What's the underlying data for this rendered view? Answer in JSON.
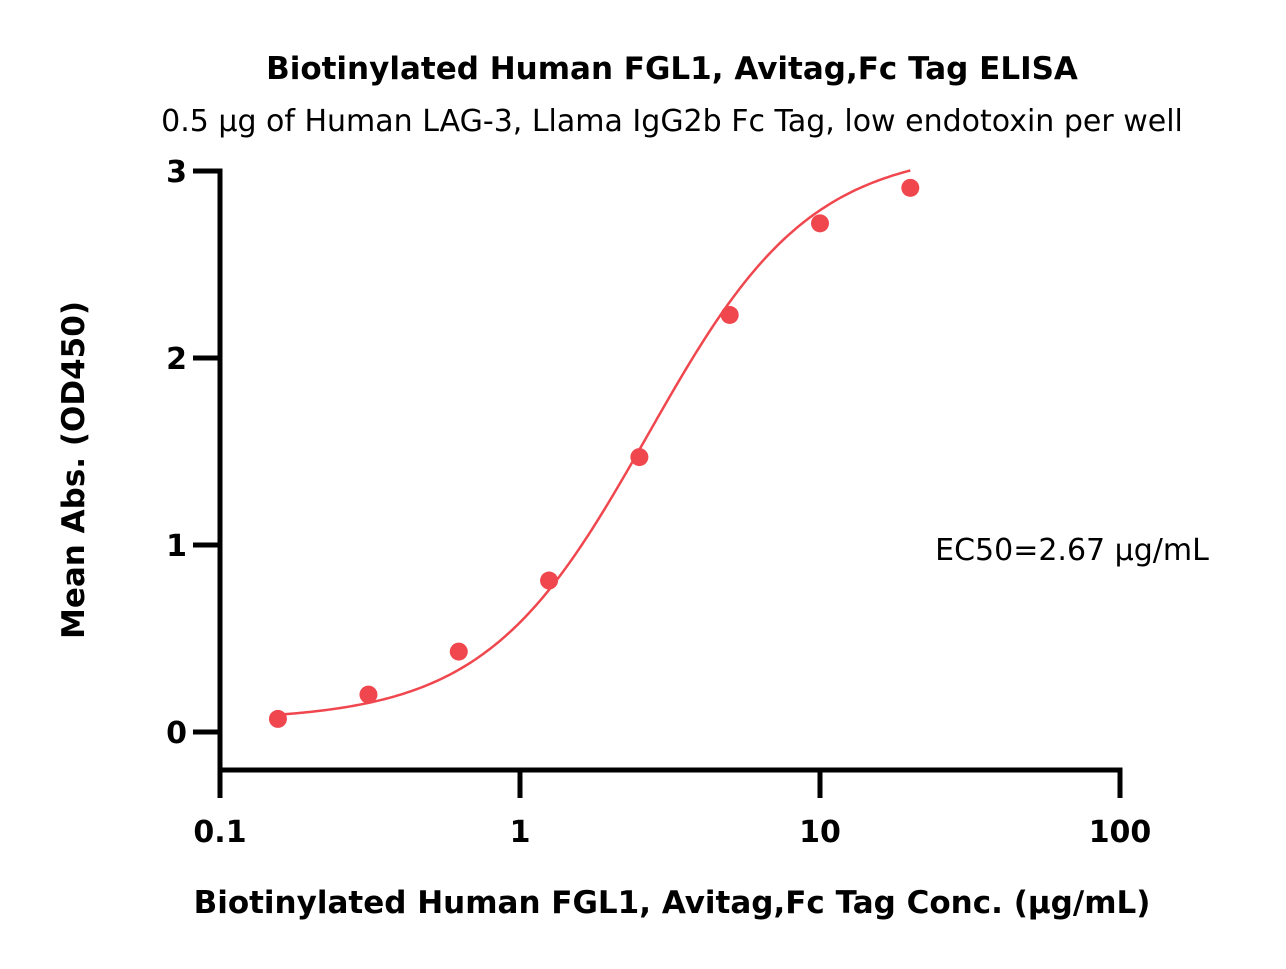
{
  "chart_data": {
    "type": "scatter",
    "title": "Biotinylated Human FGL1, Avitag,Fc Tag ELISA",
    "subtitle": "0.5 μg of Human LAG-3, Llama IgG2b Fc Tag, low endotoxin per well",
    "xlabel": "Biotinylated Human FGL1, Avitag,Fc Tag Conc. (μg/mL)",
    "ylabel": "Mean Abs. (OD450)",
    "x_scale": "log",
    "xlim": [
      0.1,
      100
    ],
    "ylim": [
      -0.2,
      3
    ],
    "x_ticks": [
      0.1,
      1,
      10,
      100
    ],
    "x_tick_labels": [
      "0.1",
      "1",
      "10",
      "100"
    ],
    "y_ticks": [
      0,
      1,
      2,
      3
    ],
    "y_tick_labels": [
      "0",
      "1",
      "2",
      "3"
    ],
    "grid": false,
    "series": [
      {
        "x": [
          0.156,
          0.3125,
          0.625,
          1.25,
          2.5,
          5,
          10,
          20
        ],
        "y": [
          0.07,
          0.2,
          0.43,
          0.81,
          1.47,
          2.23,
          2.72,
          2.91
        ],
        "color": "#f0474f",
        "fit": "4PL",
        "fit_params": {
          "bottom": 0.06,
          "top": 3.12,
          "ec50": 2.67,
          "hill": 1.6
        },
        "fit_range": [
          0.156,
          20
        ]
      }
    ],
    "annotations": [
      {
        "text": "EC50=2.67 μg/mL"
      }
    ]
  }
}
